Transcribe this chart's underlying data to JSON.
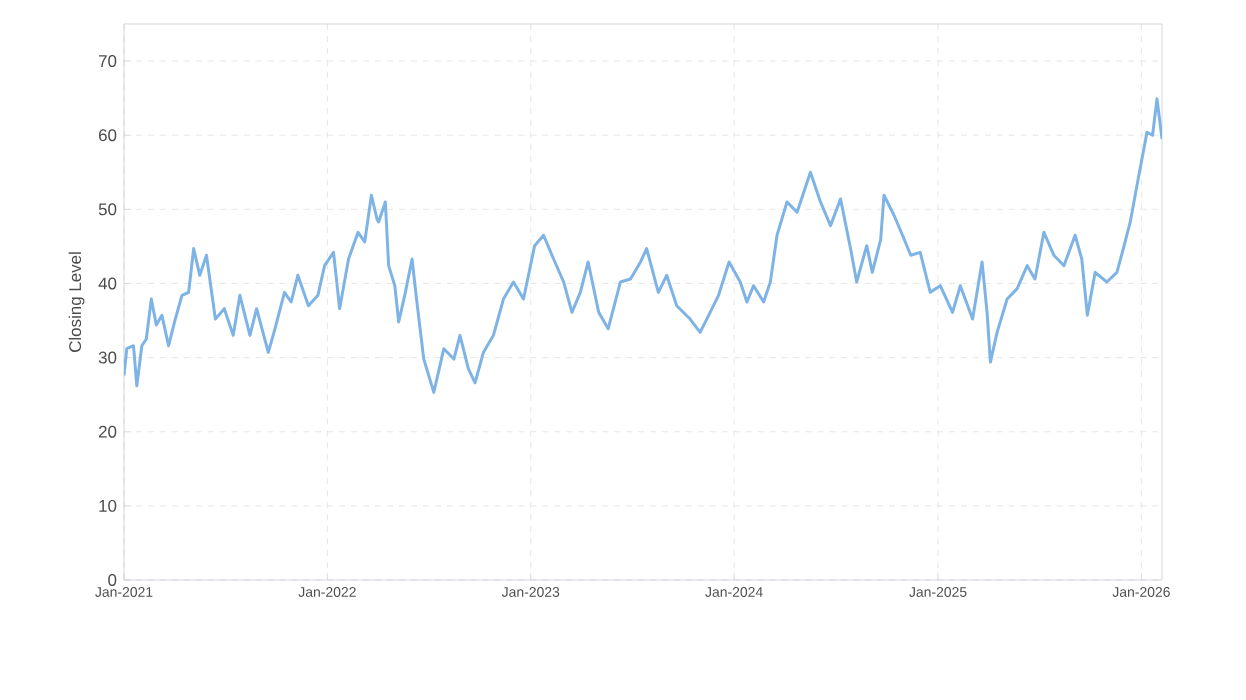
{
  "chart_data": {
    "type": "line",
    "ylabel": "Closing Level",
    "color": "#7eb3e6",
    "grid": true,
    "marker": "none",
    "line_style": "solid",
    "xlim": [
      "2021-01-01",
      "2026-02-07"
    ],
    "ylim": [
      0,
      75
    ],
    "xticks": [
      {
        "value": "2021-01-01",
        "label": "Jan-2021"
      },
      {
        "value": "2022-01-01",
        "label": "Jan-2022"
      },
      {
        "value": "2023-01-01",
        "label": "Jan-2023"
      },
      {
        "value": "2024-01-01",
        "label": "Jan-2024"
      },
      {
        "value": "2025-01-01",
        "label": "Jan-2025"
      },
      {
        "value": "2026-01-01",
        "label": "Jan-2026"
      }
    ],
    "yticks": [
      0,
      10,
      20,
      30,
      40,
      50,
      60,
      70
    ],
    "x": [
      "2021-01-01",
      "2021-01-06",
      "2021-01-18",
      "2021-01-24",
      "2021-02-02",
      "2021-02-10",
      "2021-02-19",
      "2021-02-28",
      "2021-03-10",
      "2021-03-22",
      "2021-04-03",
      "2021-04-15",
      "2021-04-27",
      "2021-05-06",
      "2021-05-17",
      "2021-05-29",
      "2021-06-14",
      "2021-06-30",
      "2021-07-16",
      "2021-07-28",
      "2021-08-15",
      "2021-08-27",
      "2021-09-17",
      "2021-09-29",
      "2021-10-16",
      "2021-10-28",
      "2021-11-09",
      "2021-11-28",
      "2021-12-15",
      "2021-12-27",
      "2022-01-12",
      "2022-01-23",
      "2022-02-08",
      "2022-02-25",
      "2022-03-09",
      "2022-03-21",
      "2022-03-31",
      "2022-04-03",
      "2022-04-15",
      "2022-04-21",
      "2022-05-02",
      "2022-05-09",
      "2022-05-21",
      "2022-06-02",
      "2022-06-10",
      "2022-06-23",
      "2022-07-11",
      "2022-07-29",
      "2022-08-16",
      "2022-08-27",
      "2022-09-11",
      "2022-09-23",
      "2022-10-08",
      "2022-10-26",
      "2022-11-13",
      "2022-12-01",
      "2022-12-19",
      "2023-01-08",
      "2023-01-24",
      "2023-02-11",
      "2023-03-01",
      "2023-03-16",
      "2023-03-31",
      "2023-04-14",
      "2023-05-03",
      "2023-05-20",
      "2023-06-11",
      "2023-06-29",
      "2023-07-17",
      "2023-07-28",
      "2023-08-18",
      "2023-09-02",
      "2023-09-20",
      "2023-10-14",
      "2023-11-01",
      "2023-11-19",
      "2023-12-04",
      "2023-12-23",
      "2024-01-12",
      "2024-01-24",
      "2024-02-05",
      "2024-02-23",
      "2024-03-06",
      "2024-03-18",
      "2024-04-05",
      "2024-04-23",
      "2024-05-17",
      "2024-06-04",
      "2024-06-22",
      "2024-07-10",
      "2024-07-28",
      "2024-08-08",
      "2024-08-26",
      "2024-09-05",
      "2024-09-20",
      "2024-09-26",
      "2024-10-14",
      "2024-11-01",
      "2024-11-13",
      "2024-11-30",
      "2024-12-18",
      "2025-01-05",
      "2025-01-27",
      "2025-02-10",
      "2025-03-04",
      "2025-03-21",
      "2025-03-30",
      "2025-04-05",
      "2025-04-17",
      "2025-05-05",
      "2025-05-23",
      "2025-06-10",
      "2025-06-24",
      "2025-07-10",
      "2025-07-28",
      "2025-08-15",
      "2025-09-04",
      "2025-09-16",
      "2025-09-26",
      "2025-10-10",
      "2025-10-31",
      "2025-11-18",
      "2025-12-01",
      "2025-12-12",
      "2025-12-24",
      "2026-01-11",
      "2026-01-21",
      "2026-01-29",
      "2026-02-07"
    ],
    "values": [
      27.6,
      31.2,
      31.6,
      26.2,
      31.6,
      32.5,
      37.9,
      34.4,
      35.7,
      31.6,
      35.2,
      38.4,
      38.8,
      44.7,
      41.1,
      43.8,
      35.2,
      36.6,
      33,
      38.4,
      33,
      36.6,
      30.7,
      33.9,
      38.8,
      37.5,
      41.1,
      37,
      38.4,
      42.4,
      44.2,
      36.6,
      43.3,
      46.9,
      45.6,
      51.9,
      48.7,
      48.3,
      51,
      42.4,
      39.7,
      34.8,
      38.8,
      43.3,
      37.9,
      29.8,
      25.3,
      31.2,
      29.8,
      33,
      28.5,
      26.6,
      30.7,
      33,
      37.9,
      40.2,
      37.9,
      45.1,
      46.5,
      43.3,
      40.2,
      36.1,
      38.8,
      42.9,
      36.1,
      33.9,
      40.2,
      40.6,
      42.9,
      44.7,
      38.8,
      41.1,
      37,
      35.2,
      33.4,
      36.1,
      38.4,
      42.9,
      40.2,
      37.5,
      39.7,
      37.5,
      40.2,
      46.5,
      51,
      49.6,
      55,
      51,
      47.8,
      51.4,
      44.7,
      40.2,
      45.1,
      41.5,
      45.9,
      51.9,
      49.2,
      46,
      43.8,
      44.2,
      38.8,
      39.7,
      36.1,
      39.7,
      35.2,
      42.9,
      36.1,
      29.4,
      33.4,
      37.9,
      39.3,
      42.4,
      40.6,
      46.9,
      43.8,
      42.4,
      46.5,
      43.3,
      35.7,
      41.5,
      40.2,
      41.5,
      45.1,
      48.3,
      53.2,
      60.4,
      60,
      64.9,
      59.5
    ]
  }
}
